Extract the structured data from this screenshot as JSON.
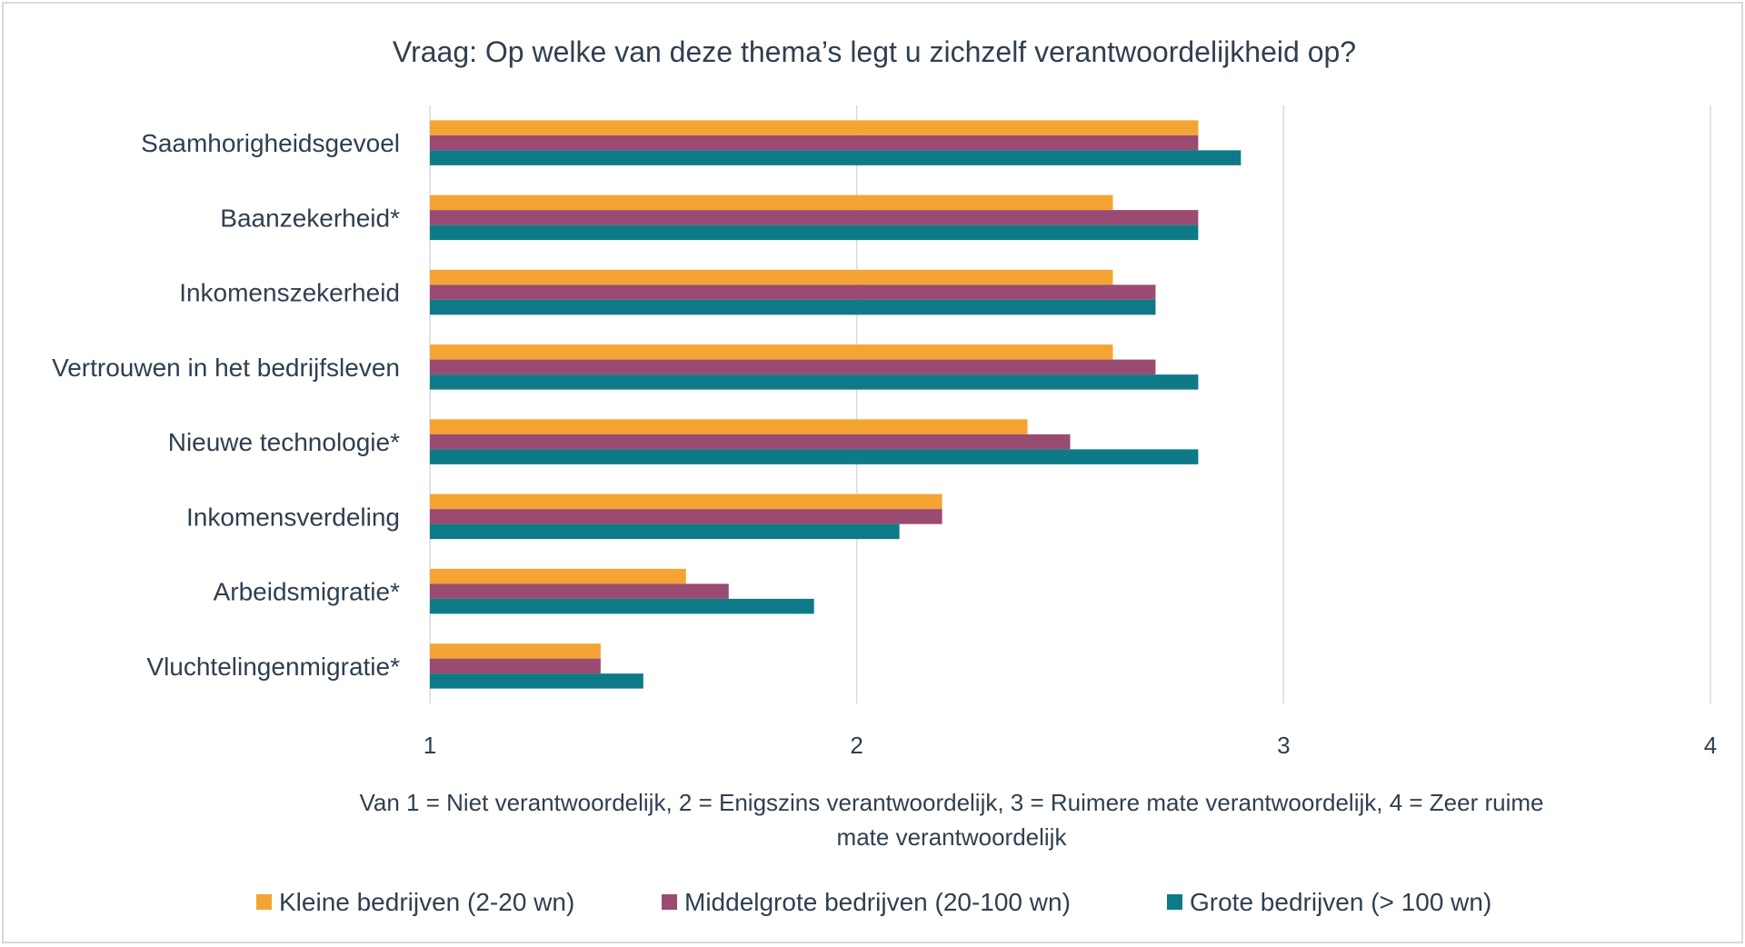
{
  "chart_data": {
    "type": "bar",
    "orientation": "horizontal",
    "title": "Vraag: Op welke van deze thema’s legt u zichzelf verantwoordelijkheid op?",
    "xlabel_lines": [
      "Van 1 = Niet verantwoordelijk, 2 = Enigszins verantwoordelijk, 3 = Ruimere mate verantwoordelijk, 4 = Zeer ruime",
      "mate verantwoordelijk"
    ],
    "xlim": [
      1,
      4
    ],
    "xticks": [
      "1",
      "2",
      "3",
      "4"
    ],
    "grid": true,
    "legend_position": "bottom",
    "categories": [
      "Saamhorigheidsgevoel",
      "Baanzekerheid*",
      "Inkomenszekerheid",
      "Vertrouwen in het bedrijfsleven",
      "Nieuwe technologie*",
      "Inkomensverdeling",
      "Arbeidsmigratie*",
      "Vluchtelingenmigratie*"
    ],
    "series": [
      {
        "name": "Kleine bedrijven (2-20 wn)",
        "color": "#f5a433",
        "values": [
          2.8,
          2.6,
          2.6,
          2.6,
          2.4,
          2.2,
          1.6,
          1.4
        ]
      },
      {
        "name": "Middelgrote bedrijven (20-100 wn)",
        "color": "#994b72",
        "values": [
          2.8,
          2.8,
          2.7,
          2.7,
          2.5,
          2.2,
          1.7,
          1.4
        ]
      },
      {
        "name": "Grote bedrijven (> 100 wn)",
        "color": "#0f7a87",
        "values": [
          2.9,
          2.8,
          2.7,
          2.8,
          2.8,
          2.1,
          1.9,
          1.5
        ]
      }
    ]
  }
}
